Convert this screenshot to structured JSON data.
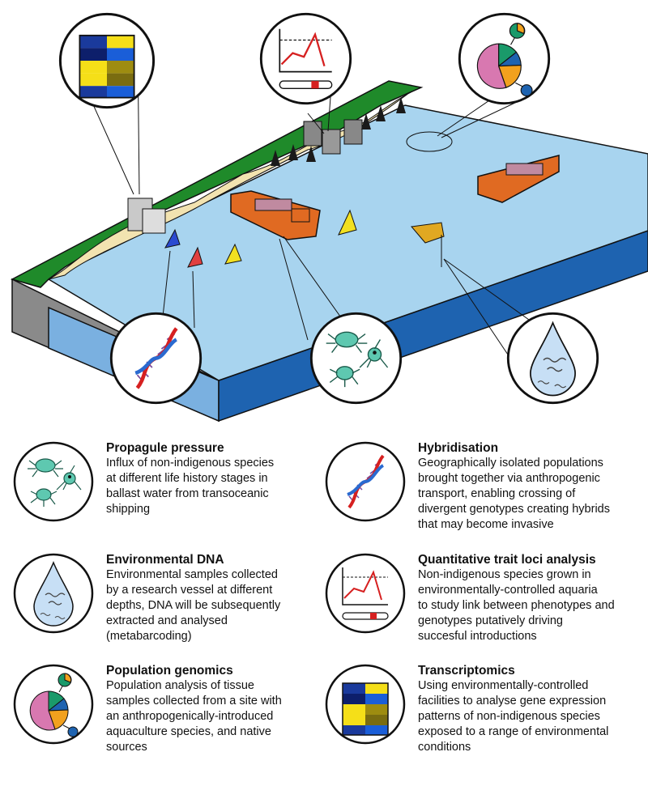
{
  "items": [
    {
      "title": "Propagule pressure",
      "lines": [
        "Influx of non-indigenous species",
        "at different life history stages in",
        "ballast water from transoceanic",
        "shipping"
      ],
      "icon": "crab-larva-icon"
    },
    {
      "title": "Hybridisation",
      "lines": [
        "Geographically isolated populations",
        "brought together via anthropogenic",
        "transport, enabling crossing of",
        "divergent genotypes creating hybrids",
        "that may become invasive"
      ],
      "icon": "dna-helix-icon"
    },
    {
      "title": "Environmental DNA",
      "lines": [
        "Environmental samples collected",
        "by a research vessel at different",
        "depths, DNA will be subsequently",
        "extracted and analysed",
        "(metabarcoding)"
      ],
      "icon": "water-drop-dna-icon"
    },
    {
      "title": "Quantitative trait loci analysis",
      "lines": [
        "Non-indigenous species grown in",
        "environmentally-controlled aquaria",
        "to study link between phenotypes and",
        "genotypes putatively driving",
        "succesful introductions"
      ],
      "icon": "line-graph-icon"
    },
    {
      "title": "Population genomics",
      "lines": [
        "Population analysis of tissue",
        "samples collected from a site with",
        "an anthropogenically-introduced",
        "aquaculture species, and native",
        "sources"
      ],
      "icon": "pie-chart-icon"
    },
    {
      "title": "Transcriptomics",
      "lines": [
        "Using environmentally-controlled",
        "facilities to analyse gene expression",
        "patterns of non-indigenous species",
        "exposed to a range of environmental",
        "conditions"
      ],
      "icon": "heatmap-icon"
    }
  ],
  "colors": {
    "sea": "#a8d4ef",
    "sea_side": "#1e63b0",
    "land": "#1f8a2a",
    "sand": "#f2e3b0",
    "ship": "#e06a22"
  }
}
